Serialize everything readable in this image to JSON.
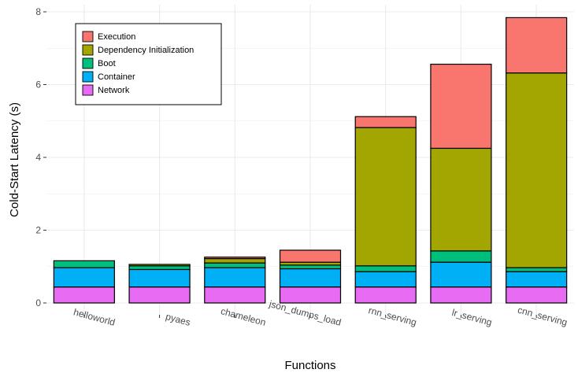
{
  "chart_data": {
    "type": "bar",
    "stacked": true,
    "title": "",
    "xlabel": "Functions",
    "ylabel": "Cold-Start Latency (s)",
    "ylim": [
      -0.35,
      8.2
    ],
    "yticks": [
      0,
      2,
      4,
      6,
      8
    ],
    "grid": true,
    "legend_position": "top-left",
    "categories": [
      "helloworld",
      "pyaes",
      "chameleon",
      "json_dumps_load",
      "rnn_serving",
      "lr_serving",
      "cnn_serving"
    ],
    "series": [
      {
        "name": "Network",
        "color": "#E76BF3",
        "values": [
          0.44,
          0.44,
          0.44,
          0.44,
          0.44,
          0.44,
          0.44
        ]
      },
      {
        "name": "Container",
        "color": "#00B0F6",
        "values": [
          0.53,
          0.48,
          0.53,
          0.5,
          0.42,
          0.68,
          0.42
        ]
      },
      {
        "name": "Boot",
        "color": "#00BF7D",
        "values": [
          0.19,
          0.1,
          0.13,
          0.1,
          0.16,
          0.31,
          0.11
        ]
      },
      {
        "name": "Dependency Initialization",
        "color": "#A3A500",
        "values": [
          0.0,
          0.04,
          0.12,
          0.08,
          3.8,
          2.82,
          5.35
        ]
      },
      {
        "name": "Execution",
        "color": "#F8766D",
        "values": [
          0.0,
          0.0,
          0.04,
          0.33,
          0.3,
          2.31,
          1.52
        ]
      }
    ],
    "legend_order": [
      "Execution",
      "Dependency Initialization",
      "Boot",
      "Container",
      "Network"
    ]
  }
}
